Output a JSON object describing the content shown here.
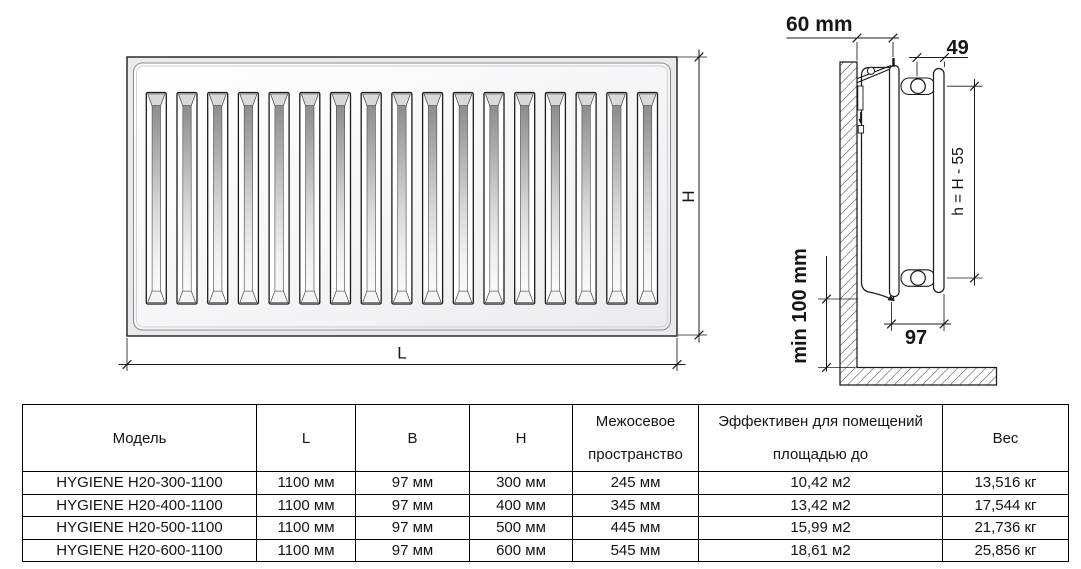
{
  "page": {
    "background": "#ffffff",
    "ink_color": "#161616"
  },
  "drawing": {
    "front_view": {
      "slot_count": 17,
      "dims": {
        "length": "L",
        "height": "H"
      }
    },
    "side_view": {
      "dims": {
        "wall_offset": "60 mm",
        "pipe_axis_offset": "49",
        "connection_height": "h = H - 55",
        "floor_clearance": "min 100 mm",
        "depth": "97"
      }
    }
  },
  "spec_table": {
    "columns": [
      "Модель",
      "L",
      "B",
      "H",
      "Межосевое пространство",
      "Эффективен для помещений площадью до",
      "Вес"
    ],
    "rows": [
      [
        "HYGIENE H20-300-1100",
        "1100 мм",
        "97 мм",
        "300 мм",
        "245 мм",
        "10,42 м2",
        "13,516 кг"
      ],
      [
        "HYGIENE H20-400-1100",
        "1100 мм",
        "97 мм",
        "400 мм",
        "345 мм",
        "13,42 м2",
        "17,544 кг"
      ],
      [
        "HYGIENE H20-500-1100",
        "1100 мм",
        "97 мм",
        "500 мм",
        "445 мм",
        "15,99 м2",
        "21,736 кг"
      ],
      [
        "HYGIENE H20-600-1100",
        "1100 мм",
        "97 мм",
        "600 мм",
        "545 мм",
        "18,61 м2",
        "25,856 кг"
      ]
    ]
  }
}
